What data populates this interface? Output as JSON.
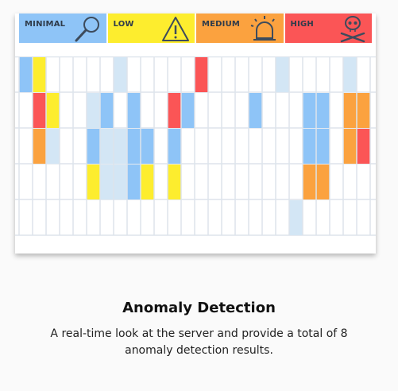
{
  "colors": {
    "minimal": "#8ec4f7",
    "low": "#fded2e",
    "medium": "#fba23f",
    "high": "#fb5556",
    "pale": "#d3e6f5",
    "grid_line": "#dde4ec"
  },
  "legend": [
    {
      "key": "minimal",
      "label": "MINIMAL",
      "icon": "magnifier-icon",
      "color": "#8ec4f7"
    },
    {
      "key": "low",
      "label": "LOW",
      "icon": "warning-triangle-icon",
      "color": "#fded2e"
    },
    {
      "key": "medium",
      "label": "MEDIUM",
      "icon": "siren-icon",
      "color": "#fba23f"
    },
    {
      "key": "high",
      "label": "HIGH",
      "icon": "skull-crossbones-icon",
      "color": "#fb5556"
    }
  ],
  "matrix": {
    "columns": 26,
    "rows": 5,
    "cells": [
      [
        0,
        0,
        "minimal"
      ],
      [
        0,
        1,
        "low"
      ],
      [
        0,
        7,
        "pale"
      ],
      [
        0,
        13,
        "high"
      ],
      [
        0,
        19,
        "pale"
      ],
      [
        0,
        24,
        "pale"
      ],
      [
        1,
        1,
        "high"
      ],
      [
        1,
        2,
        "low"
      ],
      [
        1,
        5,
        "pale"
      ],
      [
        1,
        6,
        "minimal"
      ],
      [
        1,
        8,
        "minimal"
      ],
      [
        1,
        11,
        "high"
      ],
      [
        1,
        12,
        "minimal"
      ],
      [
        1,
        17,
        "minimal"
      ],
      [
        1,
        21,
        "minimal"
      ],
      [
        1,
        22,
        "minimal"
      ],
      [
        1,
        24,
        "medium"
      ],
      [
        1,
        25,
        "medium"
      ],
      [
        2,
        1,
        "medium"
      ],
      [
        2,
        2,
        "pale"
      ],
      [
        2,
        5,
        "minimal"
      ],
      [
        2,
        6,
        "pale"
      ],
      [
        2,
        7,
        "pale"
      ],
      [
        2,
        8,
        "minimal"
      ],
      [
        2,
        9,
        "minimal"
      ],
      [
        2,
        11,
        "minimal"
      ],
      [
        2,
        21,
        "minimal"
      ],
      [
        2,
        22,
        "minimal"
      ],
      [
        2,
        24,
        "medium"
      ],
      [
        2,
        25,
        "high"
      ],
      [
        3,
        5,
        "low"
      ],
      [
        3,
        6,
        "pale"
      ],
      [
        3,
        7,
        "pale"
      ],
      [
        3,
        8,
        "minimal"
      ],
      [
        3,
        9,
        "low"
      ],
      [
        3,
        11,
        "low"
      ],
      [
        3,
        21,
        "medium"
      ],
      [
        3,
        22,
        "medium"
      ],
      [
        4,
        20,
        "pale"
      ]
    ]
  },
  "caption": {
    "title": "Anomaly Detection",
    "text": "A real-time look at the server and provide a total of 8 anomaly detection results."
  }
}
